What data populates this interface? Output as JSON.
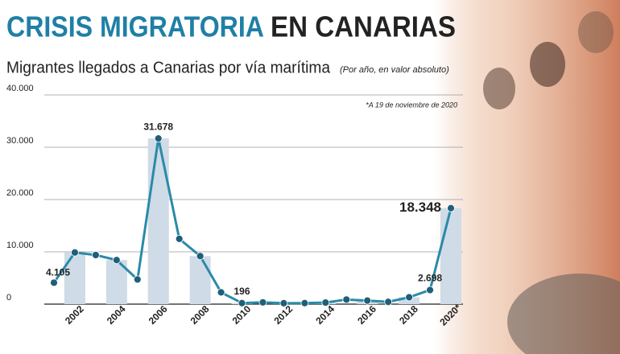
{
  "chart_data": {
    "type": "line",
    "title_part1": "CRISIS MIGRATORIA",
    "title_part2": "EN CANARIAS",
    "subtitle": "Migrantes llegados a Canarias por vía marítima",
    "subtitle_note": "(Por año, en valor absoluto)",
    "annotation": "*A 19 de noviembre de 2020",
    "categories": [
      null,
      "2002",
      null,
      "2004",
      null,
      "2006",
      null,
      "2008",
      null,
      "2010",
      null,
      "2012",
      null,
      "2014",
      null,
      "2016",
      null,
      "2018",
      null,
      "2020*"
    ],
    "series": [
      {
        "name": "Migrantes",
        "color": "#2a8aa8",
        "values": [
          4105,
          9875,
          9388,
          8426,
          4715,
          31678,
          12478,
          9181,
          2246,
          196,
          340,
          173,
          196,
          296,
          874,
          671,
          421,
          1307,
          2698,
          18348
        ],
        "value_labels": [
          "4.105",
          null,
          null,
          null,
          null,
          "31.678",
          null,
          null,
          null,
          "196",
          null,
          null,
          null,
          null,
          null,
          null,
          null,
          null,
          "2.698",
          "18.348"
        ]
      }
    ],
    "bar_color": "#cfdbe6",
    "marker_color": "#1f5f7a",
    "ylim": [
      0,
      40000
    ],
    "yticks": [
      0,
      {
        "value": 10000,
        "label": "10.000"
      },
      {
        "value": 20000,
        "label": "20.000"
      },
      {
        "value": 30000,
        "label": "30.000"
      },
      {
        "value": 40000,
        "label": "40.000"
      }
    ],
    "grid": true
  }
}
